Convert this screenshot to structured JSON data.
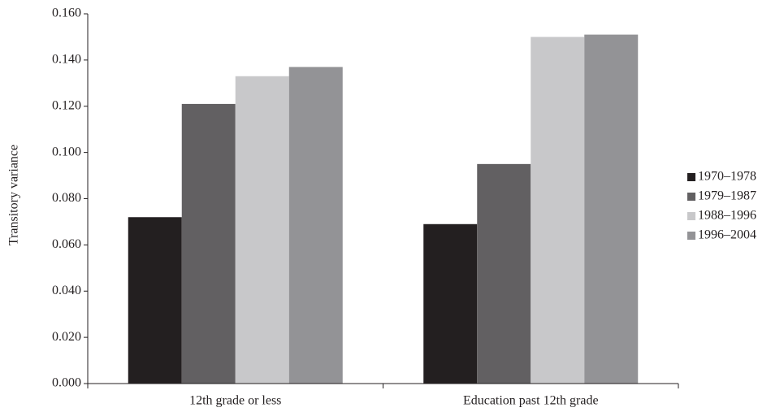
{
  "chart_data": {
    "type": "bar",
    "y_label": "Transitory variance",
    "categories": [
      "12th grade or less",
      "Education past 12th grade"
    ],
    "series": [
      {
        "name": "1970–1978",
        "color": "#231f20",
        "values": [
          0.072,
          0.069
        ]
      },
      {
        "name": "1979–1987",
        "color": "#626062",
        "values": [
          0.121,
          0.095
        ]
      },
      {
        "name": "1988–1996",
        "color": "#c8c8ca",
        "values": [
          0.133,
          0.15
        ]
      },
      {
        "name": "1996–2004",
        "color": "#939396",
        "values": [
          0.137,
          0.151
        ]
      }
    ],
    "ylim": [
      0,
      0.16
    ],
    "yticks": [
      {
        "value": 0,
        "label": "0.000"
      },
      {
        "value": 0.02,
        "label": "0.020"
      },
      {
        "value": 0.04,
        "label": "0.040"
      },
      {
        "value": 0.06,
        "label": "0.060"
      },
      {
        "value": 0.08,
        "label": "0.080"
      },
      {
        "value": 0.1,
        "label": "0.100"
      },
      {
        "value": 0.12,
        "label": "0.120"
      },
      {
        "value": 0.14,
        "label": "0.140"
      },
      {
        "value": 0.16,
        "label": "0.160"
      }
    ],
    "legend": "right"
  }
}
